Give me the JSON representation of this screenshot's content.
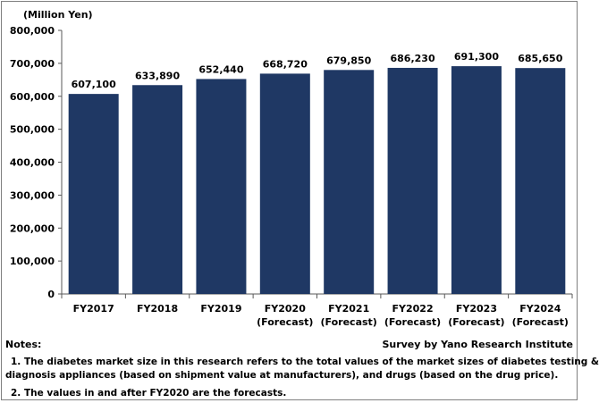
{
  "chart_data": {
    "type": "bar",
    "unit_label": "(Million Yen)",
    "categories": [
      [
        "FY2017"
      ],
      [
        "FY2018"
      ],
      [
        "FY2019"
      ],
      [
        "FY2020",
        "(Forecast)"
      ],
      [
        "FY2021",
        "(Forecast)"
      ],
      [
        "FY2022",
        "(Forecast)"
      ],
      [
        "FY2023",
        "(Forecast)"
      ],
      [
        "FY2024",
        "(Forecast)"
      ]
    ],
    "values": [
      607100,
      633890,
      652440,
      668720,
      679850,
      686230,
      691300,
      685650
    ],
    "value_labels": [
      "607,100",
      "633,890",
      "652,440",
      "668,720",
      "679,850",
      "686,230",
      "691,300",
      "685,650"
    ],
    "ylim": [
      0,
      800000
    ],
    "yticks": [
      0,
      100000,
      200000,
      300000,
      400000,
      500000,
      600000,
      700000,
      800000
    ],
    "ytick_labels": [
      "0",
      "100,000",
      "200,000",
      "300,000",
      "400,000",
      "500,000",
      "600,000",
      "700,000",
      "800,000"
    ],
    "bar_color": "#1f3864",
    "grid": false
  },
  "notes": {
    "heading": "Notes:",
    "source": "Survey by Yano Research Institute",
    "note1_line1": "1. The diabetes market size in this research refers to the total values of the market sizes of diabetes testing &",
    "note1_line2": "diagnosis appliances (based on shipment value at manufacturers), and drugs (based on the drug price).",
    "note2": "2. The values in and after FY2020 are the forecasts."
  }
}
